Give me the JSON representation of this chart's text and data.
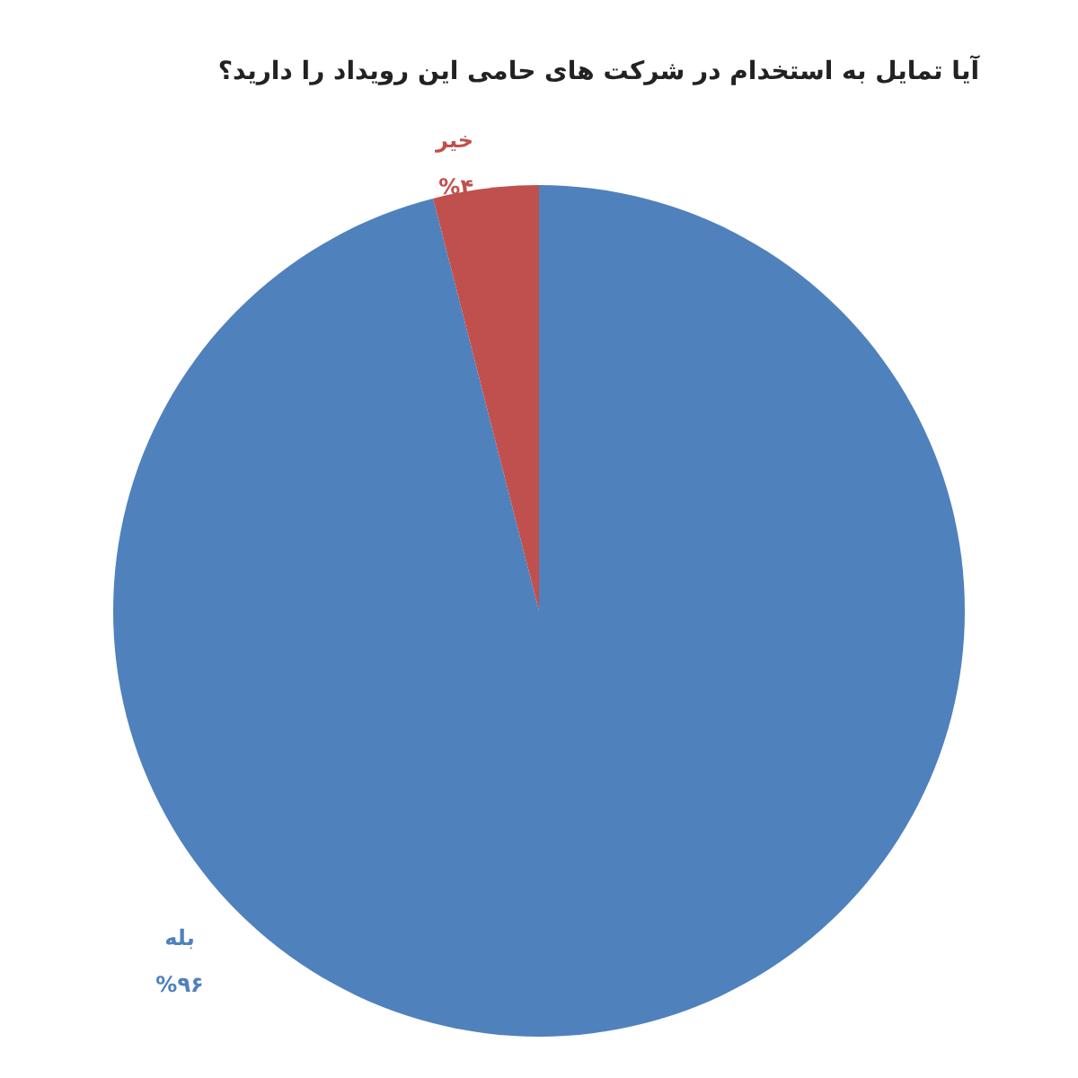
{
  "chart_data": {
    "type": "pie",
    "title": "آیا تمایل به استخدام در شرکت های حامی این رویداد را دارید؟",
    "categories": [
      "بله",
      "خیر"
    ],
    "values": [
      96,
      4
    ],
    "colors": [
      "#4f81bd",
      "#c0504d"
    ],
    "value_labels": [
      "%۹۶",
      "%۴"
    ],
    "legend": false
  }
}
